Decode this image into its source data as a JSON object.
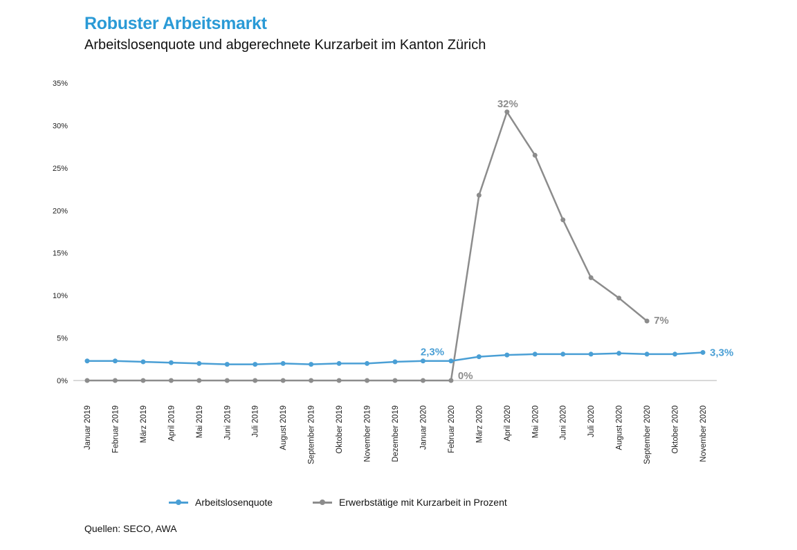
{
  "title": "Robuster Arbeitsmarkt",
  "subtitle": "Arbeitslosenquote und abgerechnete Kurzarbeit im Kanton Zürich",
  "source": "Quellen: SECO, AWA",
  "chart_data": {
    "type": "line",
    "title": "Robuster Arbeitsmarkt",
    "subtitle": "Arbeitslosenquote und abgerechnete Kurzarbeit im Kanton Zürich",
    "categories": [
      "Januar 2019",
      "Februar 2019",
      "März 2019",
      "April 2019",
      "Mai 2019",
      "Juni 2019",
      "Juli 2019",
      "August 2019",
      "September 2019",
      "Oktober 2019",
      "November 2019",
      "Dezember 2019",
      "Januar 2020",
      "Februar 2020",
      "März 2020",
      "April 2020",
      "Mai 2020",
      "Juni 2020",
      "Juli 2020",
      "August 2020",
      "September 2020",
      "Oktober 2020",
      "November 2020"
    ],
    "ylim": [
      0,
      35
    ],
    "yticks": [
      "0%",
      "5%",
      "10%",
      "15%",
      "20%",
      "25%",
      "30%",
      "35%"
    ],
    "grid": false,
    "legend": "bottom",
    "series": [
      {
        "name": "Arbeitslosenquote",
        "color": "#4a9fd5",
        "values": [
          2.3,
          2.3,
          2.2,
          2.1,
          2.0,
          1.9,
          1.9,
          2.0,
          1.9,
          2.0,
          2.0,
          2.2,
          2.3,
          2.3,
          2.8,
          3.0,
          3.1,
          3.1,
          3.1,
          3.2,
          3.1,
          3.1,
          3.3
        ]
      },
      {
        "name": "Erwerbstätige mit Kurzarbeit in Prozent",
        "color": "#8c8c8c",
        "values": [
          0,
          0,
          0,
          0,
          0,
          0,
          0,
          0,
          0,
          0,
          0,
          0,
          0,
          0,
          21.8,
          31.6,
          26.5,
          18.9,
          12.1,
          9.7,
          7.0,
          null,
          null
        ]
      }
    ],
    "annotations": [
      {
        "series": 0,
        "index": 13,
        "text": "2,3%"
      },
      {
        "series": 0,
        "index": 22,
        "text": "3,3%"
      },
      {
        "series": 1,
        "index": 13,
        "text": "0%"
      },
      {
        "series": 1,
        "index": 15,
        "text": "32%"
      },
      {
        "series": 1,
        "index": 20,
        "text": "7%"
      }
    ]
  }
}
